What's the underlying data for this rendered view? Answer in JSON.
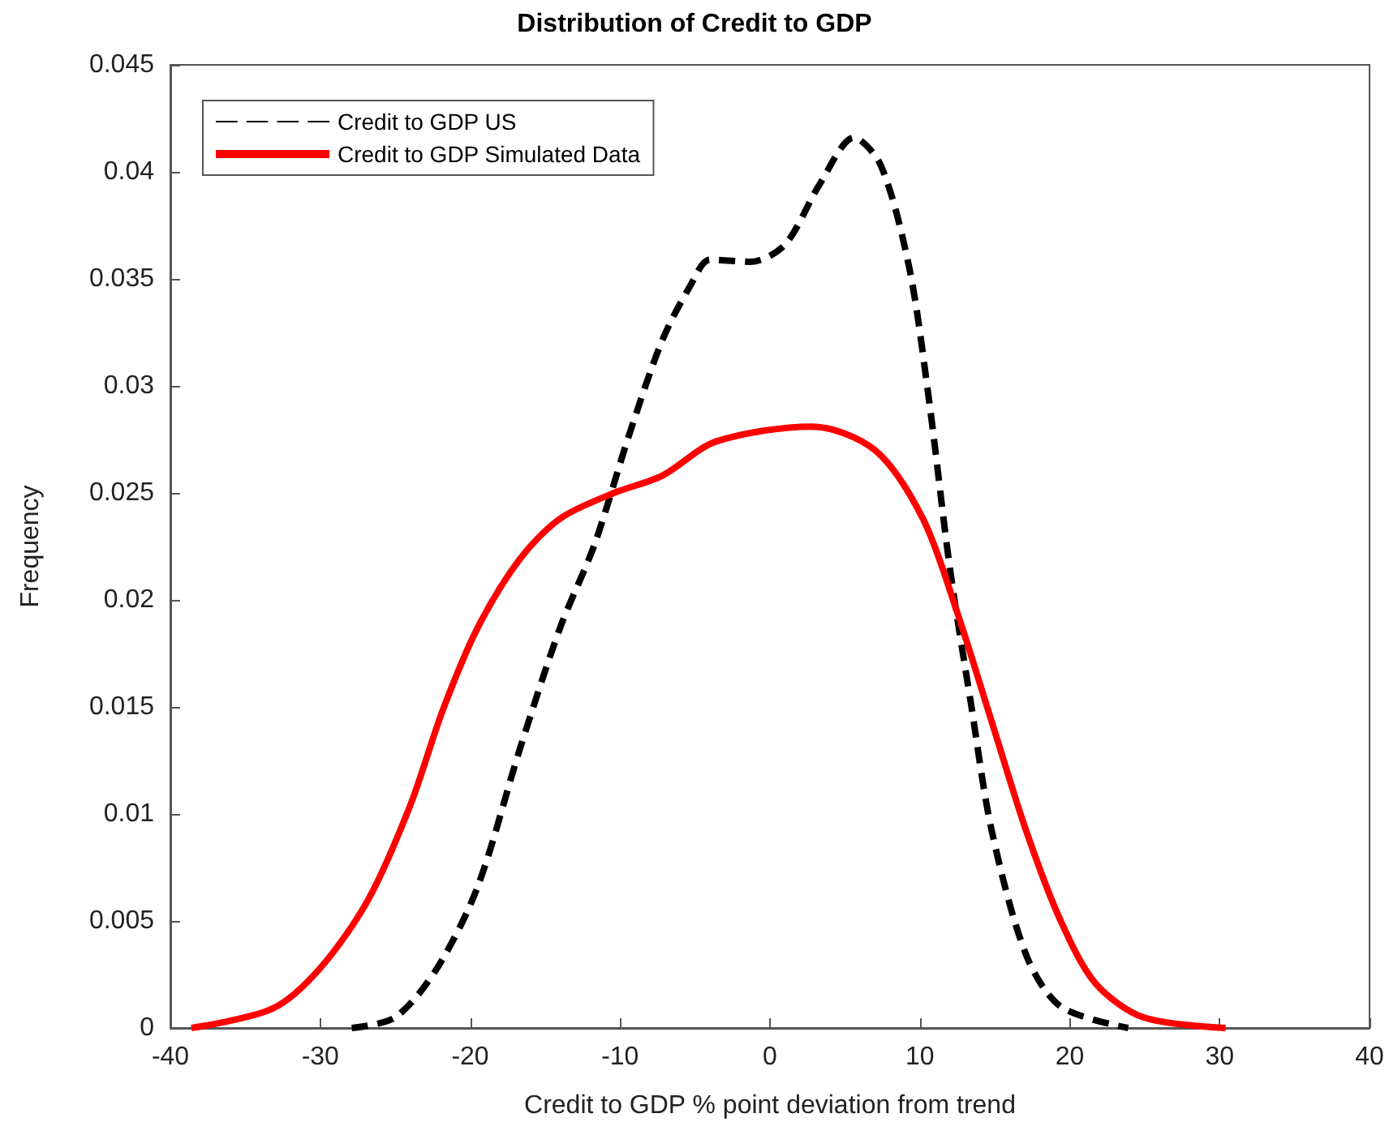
{
  "chart_data": {
    "type": "line",
    "title": "Distribution of Credit to GDP",
    "xlabel": "Credit to GDP % point deviation from trend",
    "ylabel": "Frequency",
    "xlim": [
      -40,
      40
    ],
    "xticks": [
      -40,
      -30,
      -20,
      -10,
      0,
      10,
      20,
      30,
      40
    ],
    "ylim": [
      0,
      0.045
    ],
    "yticks": [
      0,
      0.005,
      0.01,
      0.015,
      0.02,
      0.025,
      0.03,
      0.035,
      0.04,
      0.045
    ],
    "grid": false,
    "legend": "top left",
    "marker": "none",
    "series": [
      {
        "name": "Credit to GDP US",
        "color": "#000000",
        "line_style": "dashed",
        "x": [
          -27.9,
          -25,
          -22.2,
          -19.5,
          -16.7,
          -14,
          -11.7,
          -9.4,
          -7.2,
          -5.3,
          -4,
          -1.3,
          1,
          3.3,
          5.6,
          7.4,
          9.3,
          10.6,
          12,
          13.4,
          14.8,
          17.1,
          19.4,
          23.9
        ],
        "values": [
          0,
          0.0005,
          0.0028,
          0.0066,
          0.013,
          0.0187,
          0.0226,
          0.0277,
          0.0321,
          0.0347,
          0.0359,
          0.0358,
          0.0366,
          0.0394,
          0.0416,
          0.0403,
          0.0355,
          0.0294,
          0.0215,
          0.0152,
          0.0092,
          0.0034,
          0.001,
          0
        ]
      },
      {
        "name": "Credit to GDP Simulated Data",
        "color": "#ff0000",
        "line_style": "solid",
        "x": [
          -38.6,
          -33.2,
          -30,
          -26.8,
          -24,
          -21.8,
          -19.5,
          -16.7,
          -14,
          -10.4,
          -7.2,
          -3.6,
          2.8,
          7,
          10.2,
          12.5,
          14.8,
          17.1,
          19.4,
          21.7,
          24.9,
          30.4
        ],
        "values": [
          0,
          0.0009,
          0.0028,
          0.006,
          0.0104,
          0.0149,
          0.0187,
          0.0219,
          0.0238,
          0.025,
          0.0258,
          0.0274,
          0.0281,
          0.027,
          0.0238,
          0.0194,
          0.0143,
          0.0092,
          0.005,
          0.0021,
          0.0005,
          0
        ]
      }
    ]
  }
}
